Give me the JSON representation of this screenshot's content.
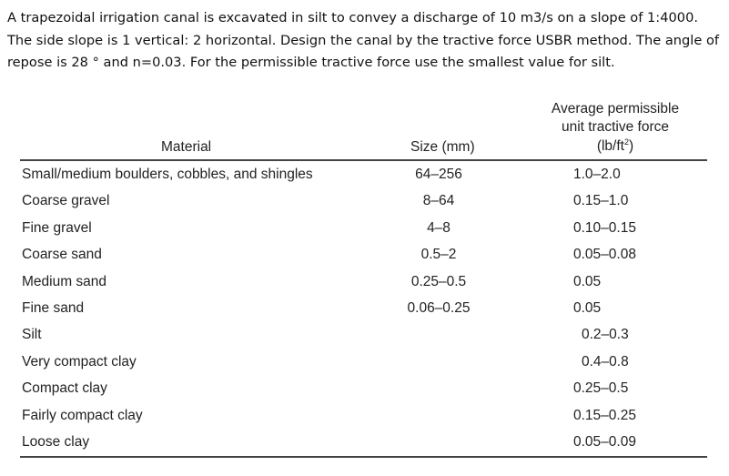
{
  "problem": {
    "text": "A trapezoidal irrigation canal is excavated in silt to convey a discharge of 10 m3/s on a slope of 1:4000. The side slope is 1 vertical: 2 horizontal. Design the canal by the tractive force USBR method. The angle of repose is 28 ° and n=0.03. For the permissible tractive force use the smallest value for silt."
  },
  "table": {
    "headers": {
      "material": "Material",
      "size": "Size (mm)",
      "force_line1": "Average permissible",
      "force_line2": "unit tractive force",
      "force_line3_pre": "(lb/ft",
      "force_line3_sup": "2",
      "force_line3_post": ")"
    },
    "rows": [
      {
        "material": "Small/medium boulders, cobbles, and shingles",
        "size": "64–256",
        "force": "1.0–2.0"
      },
      {
        "material": "Coarse gravel",
        "size": "8–64",
        "force": "0.15–1.0"
      },
      {
        "material": "Fine gravel",
        "size": "4–8",
        "force": "0.10–0.15"
      },
      {
        "material": "Coarse sand",
        "size": "0.5–2",
        "force": "0.05–0.08"
      },
      {
        "material": "Medium sand",
        "size": "0.25–0.5",
        "force": "0.05"
      },
      {
        "material": "Fine sand",
        "size": "0.06–0.25",
        "force": "0.05"
      },
      {
        "material": "Silt",
        "size": "",
        "force": "0.2–0.3"
      },
      {
        "material": "Very compact clay",
        "size": "",
        "force": "0.4–0.8"
      },
      {
        "material": "Compact clay",
        "size": "",
        "force": "0.25–0.5"
      },
      {
        "material": "Fairly compact clay",
        "size": "",
        "force": "0.15–0.25"
      },
      {
        "material": "Loose clay",
        "size": "",
        "force": "0.05–0.09"
      }
    ]
  }
}
